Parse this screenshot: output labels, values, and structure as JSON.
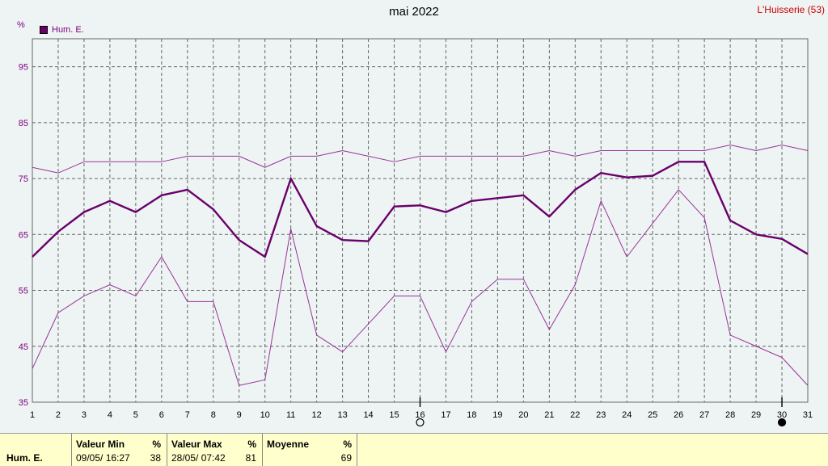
{
  "header": {
    "title": "mai 2022",
    "location": "L'Huisserie (53)",
    "unit": "%",
    "legend_label": "Hum. E."
  },
  "chart_data": {
    "type": "line",
    "x": [
      1,
      2,
      3,
      4,
      5,
      6,
      7,
      8,
      9,
      10,
      11,
      12,
      13,
      14,
      15,
      16,
      17,
      18,
      19,
      20,
      21,
      22,
      23,
      24,
      25,
      26,
      27,
      28,
      29,
      30,
      31
    ],
    "ylim": [
      35,
      100
    ],
    "yticks": [
      35,
      45,
      55,
      65,
      75,
      85,
      95
    ],
    "grid": true,
    "series": [
      {
        "name": "Hum. E.",
        "role": "max",
        "color": "#993399",
        "values": [
          77,
          76,
          78,
          78,
          78,
          78,
          79,
          79,
          79,
          77,
          79,
          79,
          80,
          79,
          78,
          79,
          79,
          79,
          79,
          79,
          80,
          79,
          80,
          80,
          80,
          80,
          80,
          81,
          80,
          81,
          80
        ]
      },
      {
        "name": "Hum. E.",
        "role": "mean",
        "color": "#6a006a",
        "values": [
          61,
          65.5,
          69,
          71,
          69,
          72,
          73,
          69.5,
          64,
          61,
          75,
          66.5,
          64,
          63.8,
          70,
          70.2,
          69,
          71,
          71.5,
          72,
          68.2,
          73,
          76,
          75.2,
          75.5,
          78,
          78,
          67.5,
          65,
          64.2,
          61.5
        ]
      },
      {
        "name": "Hum. E.",
        "role": "min",
        "color": "#993399",
        "values": [
          41,
          51,
          54,
          56,
          54,
          61,
          53,
          53,
          38,
          39,
          66,
          47,
          44,
          49,
          54,
          54,
          44,
          53,
          57,
          57,
          48,
          56,
          71,
          61,
          67,
          73,
          68,
          47,
          45,
          43,
          38
        ]
      }
    ],
    "markers": {
      "new_moon_day": 30,
      "full_moon_day": 16
    }
  },
  "stats": {
    "series_label": "Hum. E.",
    "min": {
      "label": "Valeur Min",
      "unit": "%",
      "when": "09/05/ 16:27",
      "value": "38"
    },
    "max": {
      "label": "Valeur Max",
      "unit": "%",
      "when": "28/05/ 07:42",
      "value": "81"
    },
    "avg": {
      "label": "Moyenne",
      "unit": "%",
      "value": "69"
    }
  }
}
